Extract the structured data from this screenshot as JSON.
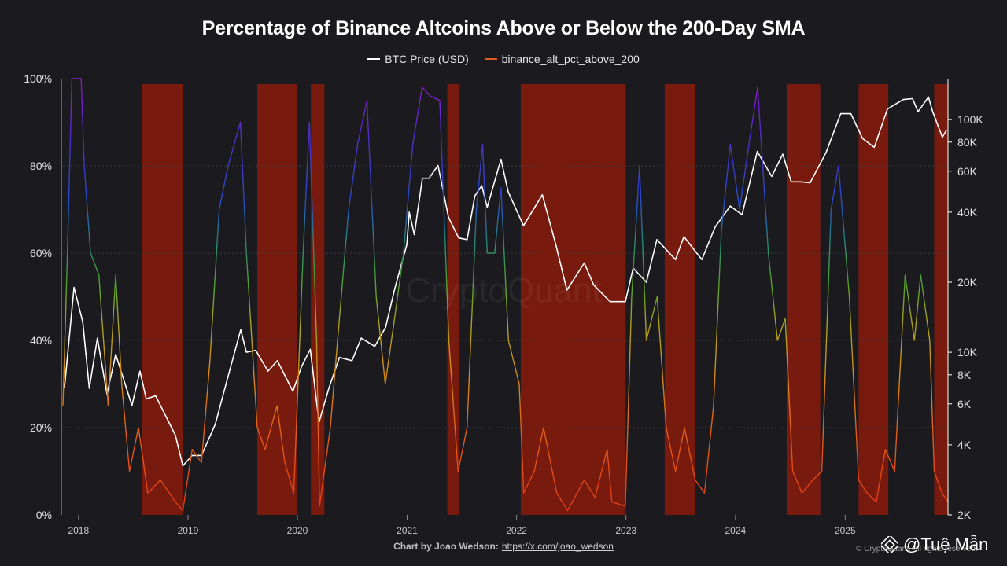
{
  "chart_data": {
    "type": "line",
    "title": "Percentage of Binance Altcoins Above or Below the 200-Day SMA",
    "legend": {
      "placement": "top-center",
      "entries": [
        "BTC Price (USD)",
        "binance_alt_pct_above_200"
      ]
    },
    "x_ticks": [
      "2018",
      "2019",
      "2020",
      "2021",
      "2022",
      "2023",
      "2024",
      "2025"
    ],
    "xlim": [
      "2017-11-10",
      "2025-12-10"
    ],
    "y_left": {
      "ticks": [
        "0%",
        "20%",
        "40%",
        "60%",
        "80%",
        "100%"
      ],
      "range": [
        0,
        100
      ]
    },
    "y_right": {
      "scale": "log",
      "ticks": [
        "2K",
        "4K",
        "6K",
        "8K",
        "10K",
        "20K",
        "40K",
        "60K",
        "80K",
        "100K"
      ],
      "range": [
        2000,
        150000
      ]
    },
    "grid": true,
    "shaded_periods": [
      [
        "2018-08-01",
        "2018-12-15"
      ],
      [
        "2019-08-20",
        "2019-12-31"
      ],
      [
        "2020-02-15",
        "2020-03-31"
      ],
      [
        "2021-05-15",
        "2021-06-25"
      ],
      [
        "2022-01-15",
        "2022-12-31"
      ],
      [
        "2023-05-10",
        "2023-08-20"
      ],
      [
        "2024-06-20",
        "2024-10-10"
      ],
      [
        "2025-02-15",
        "2025-05-25"
      ],
      [
        "2025-10-25",
        "2025-12-10"
      ]
    ],
    "series": [
      {
        "name": "BTC Price (USD)",
        "color": "#ffffff",
        "y_axis": "right",
        "points": [
          [
            "2017-11-15",
            7000
          ],
          [
            "2017-12-17",
            19000
          ],
          [
            "2018-01-15",
            13500
          ],
          [
            "2018-02-06",
            7000
          ],
          [
            "2018-03-05",
            11500
          ],
          [
            "2018-04-06",
            6600
          ],
          [
            "2018-05-05",
            9800
          ],
          [
            "2018-06-28",
            5900
          ],
          [
            "2018-07-25",
            8300
          ],
          [
            "2018-08-15",
            6300
          ],
          [
            "2018-09-15",
            6500
          ],
          [
            "2018-11-20",
            4400
          ],
          [
            "2018-12-15",
            3250
          ],
          [
            "2019-01-15",
            3600
          ],
          [
            "2019-02-15",
            3600
          ],
          [
            "2019-04-02",
            4900
          ],
          [
            "2019-05-15",
            7900
          ],
          [
            "2019-06-26",
            12500
          ],
          [
            "2019-07-15",
            10000
          ],
          [
            "2019-08-15",
            10200
          ],
          [
            "2019-09-25",
            8300
          ],
          [
            "2019-10-26",
            9200
          ],
          [
            "2019-12-17",
            6800
          ],
          [
            "2020-01-15",
            8700
          ],
          [
            "2020-02-13",
            10300
          ],
          [
            "2020-03-13",
            5000
          ],
          [
            "2020-04-15",
            7000
          ],
          [
            "2020-05-20",
            9500
          ],
          [
            "2020-07-01",
            9200
          ],
          [
            "2020-08-01",
            11500
          ],
          [
            "2020-09-15",
            10600
          ],
          [
            "2020-10-21",
            12800
          ],
          [
            "2020-11-20",
            18600
          ],
          [
            "2020-12-31",
            29000
          ],
          [
            "2021-01-08",
            40000
          ],
          [
            "2021-01-25",
            32000
          ],
          [
            "2021-02-21",
            56000
          ],
          [
            "2021-03-15",
            56000
          ],
          [
            "2021-04-14",
            63500
          ],
          [
            "2021-05-19",
            38000
          ],
          [
            "2021-06-22",
            31000
          ],
          [
            "2021-07-20",
            30500
          ],
          [
            "2021-08-15",
            47000
          ],
          [
            "2021-09-07",
            52000
          ],
          [
            "2021-09-25",
            42000
          ],
          [
            "2021-11-10",
            67500
          ],
          [
            "2021-12-04",
            49000
          ],
          [
            "2022-01-24",
            35000
          ],
          [
            "2022-03-28",
            47500
          ],
          [
            "2022-05-12",
            29000
          ],
          [
            "2022-06-18",
            18500
          ],
          [
            "2022-08-15",
            24200
          ],
          [
            "2022-09-15",
            19500
          ],
          [
            "2022-11-09",
            16500
          ],
          [
            "2022-12-30",
            16500
          ],
          [
            "2023-01-25",
            23000
          ],
          [
            "2023-03-10",
            20000
          ],
          [
            "2023-04-14",
            30500
          ],
          [
            "2023-06-15",
            25000
          ],
          [
            "2023-07-13",
            31400
          ],
          [
            "2023-09-11",
            25000
          ],
          [
            "2023-10-25",
            34500
          ],
          [
            "2023-12-15",
            42500
          ],
          [
            "2024-01-23",
            39000
          ],
          [
            "2024-03-14",
            73000
          ],
          [
            "2024-05-01",
            57000
          ],
          [
            "2024-06-07",
            71000
          ],
          [
            "2024-07-05",
            54000
          ],
          [
            "2024-08-05",
            54000
          ],
          [
            "2024-09-06",
            53500
          ],
          [
            "2024-10-29",
            72000
          ],
          [
            "2024-12-17",
            106000
          ],
          [
            "2025-01-20",
            106000
          ],
          [
            "2025-02-28",
            83000
          ],
          [
            "2025-04-08",
            76000
          ],
          [
            "2025-05-22",
            111000
          ],
          [
            "2025-07-14",
            122000
          ],
          [
            "2025-08-14",
            123000
          ],
          [
            "2025-09-01",
            108000
          ],
          [
            "2025-10-06",
            125000
          ],
          [
            "2025-10-20",
            108000
          ],
          [
            "2025-11-21",
            84000
          ],
          [
            "2025-12-05",
            90000
          ]
        ]
      },
      {
        "name": "binance_alt_pct_above_200",
        "color": "#e05a1c",
        "y_axis": "left",
        "points": [
          [
            "2017-11-10",
            25
          ],
          [
            "2017-11-25",
            60
          ],
          [
            "2017-12-10",
            100
          ],
          [
            "2018-01-10",
            100
          ],
          [
            "2018-01-20",
            80
          ],
          [
            "2018-02-10",
            60
          ],
          [
            "2018-03-10",
            55
          ],
          [
            "2018-04-10",
            25
          ],
          [
            "2018-05-05",
            55
          ],
          [
            "2018-05-25",
            30
          ],
          [
            "2018-06-20",
            10
          ],
          [
            "2018-07-20",
            20
          ],
          [
            "2018-08-20",
            5
          ],
          [
            "2018-10-01",
            8
          ],
          [
            "2018-11-20",
            3
          ],
          [
            "2018-12-15",
            1
          ],
          [
            "2019-01-15",
            15
          ],
          [
            "2019-02-15",
            12
          ],
          [
            "2019-03-15",
            35
          ],
          [
            "2019-04-15",
            70
          ],
          [
            "2019-05-15",
            80
          ],
          [
            "2019-06-25",
            90
          ],
          [
            "2019-07-15",
            60
          ],
          [
            "2019-08-20",
            20
          ],
          [
            "2019-09-15",
            15
          ],
          [
            "2019-10-25",
            25
          ],
          [
            "2019-11-20",
            12
          ],
          [
            "2019-12-20",
            5
          ],
          [
            "2020-01-20",
            60
          ],
          [
            "2020-02-10",
            90
          ],
          [
            "2020-03-05",
            40
          ],
          [
            "2020-03-15",
            2
          ],
          [
            "2020-04-20",
            20
          ],
          [
            "2020-05-20",
            45
          ],
          [
            "2020-06-20",
            70
          ],
          [
            "2020-07-20",
            85
          ],
          [
            "2020-08-20",
            95
          ],
          [
            "2020-09-20",
            50
          ],
          [
            "2020-10-20",
            30
          ],
          [
            "2020-11-20",
            45
          ],
          [
            "2020-12-20",
            60
          ],
          [
            "2021-01-20",
            85
          ],
          [
            "2021-02-20",
            98
          ],
          [
            "2021-03-20",
            96
          ],
          [
            "2021-04-20",
            95
          ],
          [
            "2021-05-20",
            40
          ],
          [
            "2021-06-20",
            10
          ],
          [
            "2021-07-20",
            20
          ],
          [
            "2021-08-20",
            70
          ],
          [
            "2021-09-10",
            85
          ],
          [
            "2021-09-25",
            60
          ],
          [
            "2021-10-20",
            60
          ],
          [
            "2021-11-10",
            75
          ],
          [
            "2021-12-05",
            40
          ],
          [
            "2022-01-10",
            30
          ],
          [
            "2022-01-25",
            5
          ],
          [
            "2022-03-01",
            10
          ],
          [
            "2022-04-01",
            20
          ],
          [
            "2022-05-15",
            5
          ],
          [
            "2022-06-20",
            1
          ],
          [
            "2022-08-15",
            8
          ],
          [
            "2022-09-20",
            4
          ],
          [
            "2022-10-30",
            15
          ],
          [
            "2022-11-15",
            3
          ],
          [
            "2022-12-30",
            2
          ],
          [
            "2023-01-20",
            50
          ],
          [
            "2023-02-15",
            80
          ],
          [
            "2023-03-10",
            40
          ],
          [
            "2023-04-15",
            50
          ],
          [
            "2023-05-15",
            20
          ],
          [
            "2023-06-15",
            10
          ],
          [
            "2023-07-15",
            20
          ],
          [
            "2023-08-20",
            8
          ],
          [
            "2023-09-20",
            5
          ],
          [
            "2023-10-20",
            25
          ],
          [
            "2023-11-15",
            65
          ],
          [
            "2023-12-15",
            85
          ],
          [
            "2024-01-15",
            70
          ],
          [
            "2024-02-15",
            85
          ],
          [
            "2024-03-15",
            98
          ],
          [
            "2024-04-20",
            60
          ],
          [
            "2024-05-20",
            40
          ],
          [
            "2024-06-15",
            45
          ],
          [
            "2024-07-10",
            10
          ],
          [
            "2024-08-10",
            5
          ],
          [
            "2024-09-15",
            8
          ],
          [
            "2024-10-15",
            10
          ],
          [
            "2024-11-15",
            70
          ],
          [
            "2024-12-10",
            80
          ],
          [
            "2025-01-15",
            50
          ],
          [
            "2025-02-15",
            8
          ],
          [
            "2025-03-15",
            5
          ],
          [
            "2025-04-15",
            3
          ],
          [
            "2025-05-15",
            15
          ],
          [
            "2025-06-15",
            10
          ],
          [
            "2025-07-20",
            55
          ],
          [
            "2025-08-20",
            40
          ],
          [
            "2025-09-10",
            55
          ],
          [
            "2025-10-10",
            40
          ],
          [
            "2025-10-25",
            10
          ],
          [
            "2025-11-20",
            5
          ],
          [
            "2025-12-10",
            3
          ]
        ]
      }
    ]
  },
  "watermark": "CryptoQuant",
  "footer": {
    "label": "Chart by Joao Wedson:",
    "link": "https://x.com/joao_wedson",
    "copyright": "© CryptoQuant. All rights reserved.",
    "brand": "@Tuệ Mẫn"
  }
}
